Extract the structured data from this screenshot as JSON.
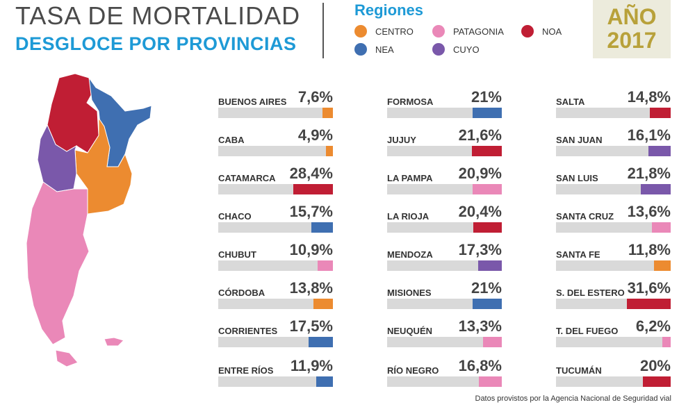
{
  "header": {
    "title": "TASA DE MORTALIDAD",
    "subtitle": "DESGLOCE POR PROVINCIAS",
    "year_label": "AÑO",
    "year_value": "2017"
  },
  "legend": {
    "title": "Regiones",
    "items": [
      {
        "label": "CENTRO",
        "color": "#ec8b30"
      },
      {
        "label": "PATAGONIA",
        "color": "#ea88b8"
      },
      {
        "label": "NOA",
        "color": "#c01e34"
      },
      {
        "label": "NEA",
        "color": "#3f6fb1"
      },
      {
        "label": "CUYO",
        "color": "#7a58aa"
      }
    ]
  },
  "chart_data": {
    "type": "bar",
    "title": "TASA DE MORTALIDAD",
    "subtitle": "DESGLOCE POR PROVINCIAS",
    "unit": "%",
    "columns": [
      [
        {
          "name": "BUENOS AIRES",
          "label": "7,6%",
          "value": 7.6,
          "region": "CENTRO"
        },
        {
          "name": "CABA",
          "label": "4,9%",
          "value": 4.9,
          "region": "CENTRO"
        },
        {
          "name": "CATAMARCA",
          "label": "28,4%",
          "value": 28.4,
          "region": "NOA"
        },
        {
          "name": "CHACO",
          "label": "15,7%",
          "value": 15.7,
          "region": "NEA"
        },
        {
          "name": "CHUBUT",
          "label": "10,9%",
          "value": 10.9,
          "region": "PATAGONIA"
        },
        {
          "name": "CÓRDOBA",
          "label": "13,8%",
          "value": 13.8,
          "region": "CENTRO"
        },
        {
          "name": "CORRIENTES",
          "label": "17,5%",
          "value": 17.5,
          "region": "NEA"
        },
        {
          "name": "ENTRE RÍOS",
          "label": "11,9%",
          "value": 11.9,
          "region": "NEA"
        }
      ],
      [
        {
          "name": "FORMOSA",
          "label": "21%",
          "value": 21,
          "region": "NEA"
        },
        {
          "name": "JUJUY",
          "label": "21,6%",
          "value": 21.6,
          "region": "NOA"
        },
        {
          "name": "LA PAMPA",
          "label": "20,9%",
          "value": 20.9,
          "region": "PATAGONIA"
        },
        {
          "name": "LA RIOJA",
          "label": "20,4%",
          "value": 20.4,
          "region": "NOA"
        },
        {
          "name": "MENDOZA",
          "label": "17,3%",
          "value": 17.3,
          "region": "CUYO"
        },
        {
          "name": "MISIONES",
          "label": "21%",
          "value": 21,
          "region": "NEA"
        },
        {
          "name": "NEUQUÉN",
          "label": "13,3%",
          "value": 13.3,
          "region": "PATAGONIA"
        },
        {
          "name": "RÍO NEGRO",
          "label": "16,8%",
          "value": 16.8,
          "region": "PATAGONIA"
        }
      ],
      [
        {
          "name": "SALTA",
          "label": "14,8%",
          "value": 14.8,
          "region": "NOA"
        },
        {
          "name": "SAN JUAN",
          "label": "16,1%",
          "value": 16.1,
          "region": "CUYO"
        },
        {
          "name": "SAN LUIS",
          "label": "21,8%",
          "value": 21.8,
          "region": "CUYO"
        },
        {
          "name": "SANTA CRUZ",
          "label": "13,6%",
          "value": 13.6,
          "region": "PATAGONIA"
        },
        {
          "name": "SANTA FE",
          "label": "11,8%",
          "value": 11.8,
          "region": "CENTRO"
        },
        {
          "name": "S. DEL ESTERO",
          "label": "31,6%",
          "value": 31.6,
          "region": "NOA"
        },
        {
          "name": "T. DEL FUEGO",
          "label": "6,2%",
          "value": 6.2,
          "region": "PATAGONIA"
        },
        {
          "name": "TUCUMÁN",
          "label": "20%",
          "value": 20,
          "region": "NOA"
        }
      ]
    ],
    "bar_max": 31.6,
    "legend_position": "top"
  },
  "source": "Datos provistos por la Agencia Nacional de Seguridad vial"
}
